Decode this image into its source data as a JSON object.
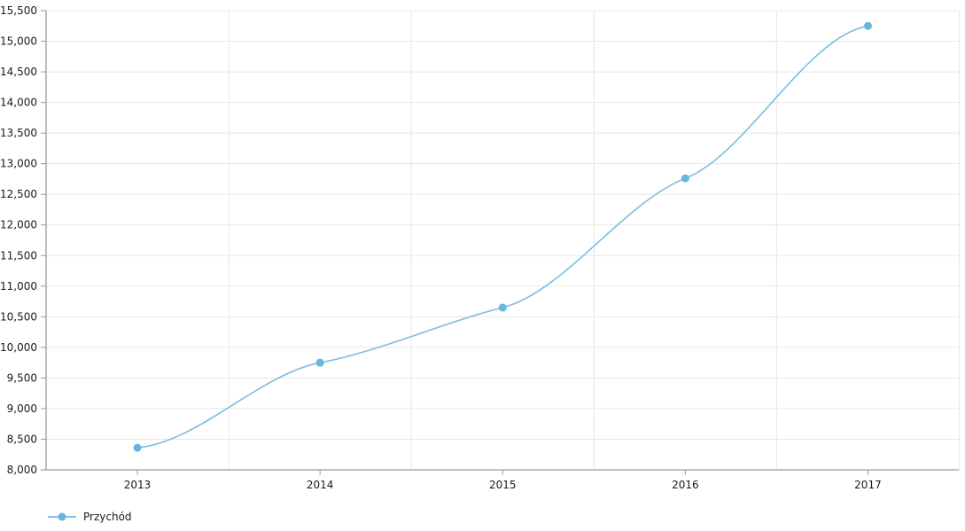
{
  "chart_data": {
    "type": "line",
    "line_style": "smoothed",
    "title": "",
    "xlabel": "",
    "ylabel": "",
    "categories": [
      "2013",
      "2014",
      "2015",
      "2016",
      "2017"
    ],
    "series": [
      {
        "name": "Przychód",
        "values": [
          8360,
          9750,
          10650,
          12760,
          15250
        ],
        "marker_color": "#67b7dc",
        "line_color": "#82c1e2"
      }
    ],
    "ylim": [
      8000,
      15500
    ],
    "y_tick_interval": 500,
    "y_tick_labels": [
      "8,000",
      "8,500",
      "9,000",
      "9,500",
      "10,000",
      "10,500",
      "11,000",
      "11,500",
      "12,000",
      "12,500",
      "13,000",
      "13,500",
      "14,000",
      "14,500",
      "15,000",
      "15,500"
    ],
    "grid": true,
    "legend_position": "bottom-left",
    "colors": {
      "background": "#ffffff",
      "grid": "#e8e8e8",
      "axis": "#9a9a9a",
      "label": "#1a1a1a"
    }
  },
  "legend": {
    "items": [
      {
        "label": "Przychód"
      }
    ]
  }
}
